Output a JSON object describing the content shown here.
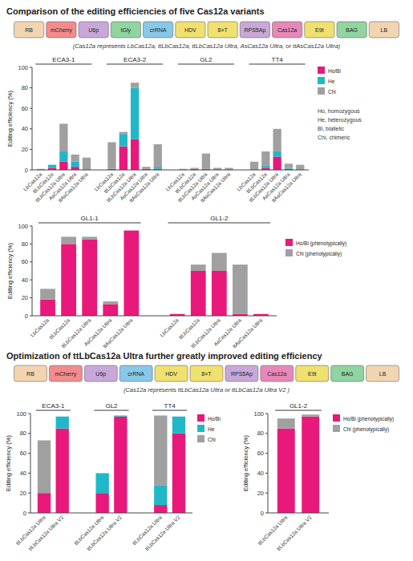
{
  "chart_data": [
    {
      "type": "diagram",
      "title": "Comparison of the editing efficiencies of five Cas12a variants",
      "subtitle": "(Cas12a represents LbCas12a, ttLbCas12a, ttLbCas12a Ultra, AsCas12a Ultra, or ttAsCas12a Ultra)",
      "categories": [
        "RB",
        "mCherry",
        "U6p",
        "tGly",
        "crRNA",
        "HDV",
        "8×T",
        "RPS5Ap",
        "Cas12a",
        "E9t",
        "BAG",
        "LB"
      ],
      "colors": [
        "#f2d5b0",
        "#f48b8b",
        "#c8a8d8",
        "#90d4a0",
        "#88c8e8",
        "#f0e070",
        "#f0e070",
        "#c8a8d8",
        "#e888b8",
        "#f0e070",
        "#90d4a0",
        "#f2d5b0"
      ]
    },
    {
      "type": "bar",
      "stacked": true,
      "y_label": "Editing efficiency (%)",
      "groups": [
        "ECA3-1",
        "ECA3-2",
        "GL2",
        "TT4"
      ],
      "categories": [
        "LbCas12a",
        "ttLbCas12a",
        "ttLbCas12a Ultra",
        "AsCas12a Ultra",
        "ttAsCas12a Ultra",
        "LbCas12a",
        "ttLbCas12a",
        "ttLbCas12a Ultra",
        "AsCas12a Ultra",
        "ttAsCas12a Ultra",
        "LbCas12a",
        "ttLbCas12a",
        "ttLbCas12a Ultra",
        "AsCas12a Ultra",
        "ttAsCas12a Ultra",
        "LbCas12a",
        "ttLbCas12a",
        "ttLbCas12a Ultra",
        "AsCas12a Ultra",
        "ttAsCas12a Ultra"
      ],
      "series": [
        {
          "name": "Ho/Bi",
          "color": "#e8197a",
          "values": [
            0,
            2,
            8,
            3,
            0,
            1,
            23,
            30,
            1,
            1,
            0,
            1,
            1,
            0,
            0,
            0,
            2,
            13,
            1,
            0
          ]
        },
        {
          "name": "He",
          "color": "#20b8c8",
          "values": [
            0,
            3,
            10,
            5,
            0,
            0,
            12,
            50,
            0,
            2,
            0,
            0,
            0,
            0,
            0,
            0,
            2,
            5,
            1,
            0
          ]
        },
        {
          "name": "Chi",
          "color": "#a0a0a0",
          "values": [
            1,
            0,
            27,
            7,
            12,
            26,
            2,
            5,
            2,
            22,
            1,
            1,
            15,
            2,
            2,
            8,
            14,
            22,
            4,
            5
          ]
        }
      ],
      "annotations": [
        "Ho, homozygous",
        "He, heterozygous",
        "Bi, biallelic",
        "Chi, chimeric"
      ],
      "ylim": [
        0,
        100
      ],
      "yticks": [
        0,
        20,
        40,
        60,
        80,
        100
      ],
      "grid": false
    },
    {
      "type": "bar",
      "stacked": true,
      "y_label": "Editing efficiency (%)",
      "groups": [
        "GL1-1",
        "GL1-2"
      ],
      "categories": [
        "LbCas12a",
        "ttLbCas12a",
        "ttLbCas12a Ultra",
        "AsCas12a Ultra",
        "ttAsCas12a Ultra",
        "LbCas12a",
        "ttLbCas12a",
        "ttLbCas12a Ultra",
        "AsCas12a Ultra",
        "ttAsCas12a Ultra"
      ],
      "series": [
        {
          "name": "Ho/Bi (phenotypically)",
          "color": "#e8197a",
          "values": [
            18,
            80,
            85,
            13,
            95,
            2,
            50,
            50,
            2,
            2
          ]
        },
        {
          "name": "Chi (phenotypically)",
          "color": "#a0a0a0",
          "values": [
            12,
            8,
            3,
            3,
            0,
            0,
            7,
            20,
            55,
            0
          ]
        }
      ],
      "ylim": [
        0,
        100
      ],
      "yticks": [
        0,
        20,
        40,
        60,
        80,
        100
      ],
      "grid": false
    },
    {
      "type": "diagram",
      "title": "Optimization of ttLbCas12a Ultra further greatly improved editing efficiency",
      "subtitle": "(Cas12a represents ttLbCas12a Ultra or ttLbCas12a Ultra V2 )",
      "categories": [
        "RB",
        "mCherry",
        "U6p",
        "crRNA",
        "HDV",
        "8×T",
        "RPS5Ap",
        "Cas12a",
        "E9t",
        "BAG",
        "LB"
      ],
      "colors": [
        "#f2d5b0",
        "#f48b8b",
        "#c8a8d8",
        "#88c8e8",
        "#f0e070",
        "#f0e070",
        "#c8a8d8",
        "#e888b8",
        "#f0e070",
        "#90d4a0",
        "#f2d5b0"
      ]
    },
    {
      "type": "bar",
      "stacked": true,
      "y_label": "Editing efficiency (%)",
      "groups": [
        "ECA3-1",
        "GL2",
        "TT4"
      ],
      "categories": [
        "ttLbCas12a Ultra",
        "ttLbCas12a Ultra V2",
        "ttLbCas12a Ultra",
        "ttLbCas12a Ultra V2",
        "ttLbCas12a Ultra",
        "ttLbCas12a Ultra V2"
      ],
      "series": [
        {
          "name": "Ho/Bi",
          "color": "#e8197a",
          "values": [
            20,
            85,
            20,
            97,
            8,
            80
          ]
        },
        {
          "name": "He",
          "color": "#20b8c8",
          "values": [
            0,
            12,
            20,
            1,
            20,
            17
          ]
        },
        {
          "name": "Chi",
          "color": "#a0a0a0",
          "values": [
            53,
            0,
            0,
            0,
            70,
            0
          ]
        }
      ],
      "ylim": [
        0,
        100
      ],
      "yticks": [
        0,
        20,
        40,
        60,
        80,
        100
      ],
      "grid": false
    },
    {
      "type": "bar",
      "stacked": true,
      "y_label": "Editing efficiency (%)",
      "groups": [
        "GL1-2"
      ],
      "categories": [
        "ttLbCas12a Ultra",
        "ttLbCas12a Ultra V2"
      ],
      "series": [
        {
          "name": "Ho/Bi (phenotypically)",
          "color": "#e8197a",
          "values": [
            85,
            97
          ]
        },
        {
          "name": "Chi (phenotypically)",
          "color": "#a0a0a0",
          "values": [
            10,
            2
          ]
        }
      ],
      "ylim": [
        0,
        100
      ],
      "yticks": [
        0,
        20,
        40,
        60,
        80,
        100
      ],
      "grid": false
    }
  ]
}
